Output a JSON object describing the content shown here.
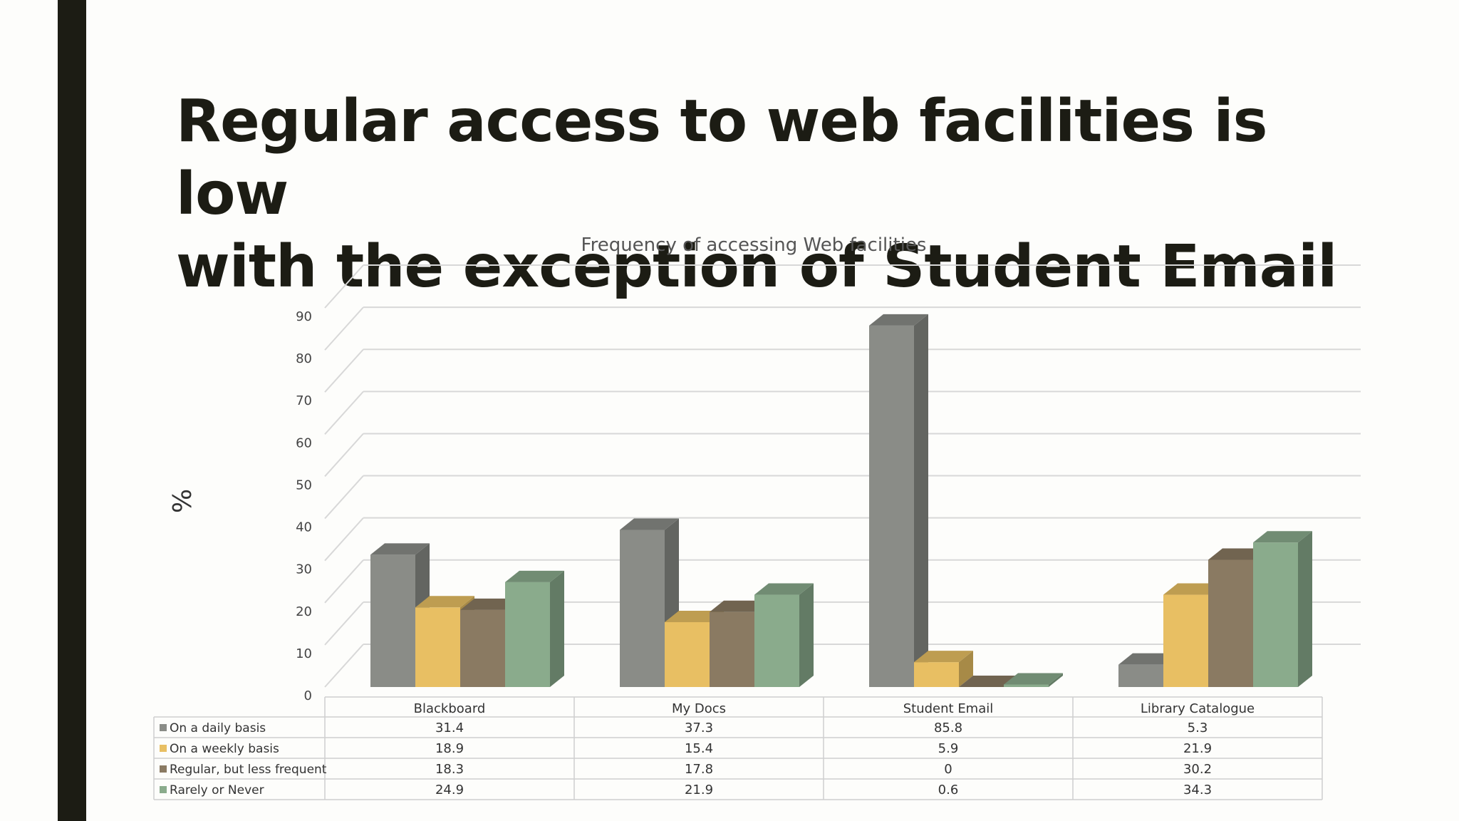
{
  "slide": {
    "title_line1": "Regular access to web facilities is low",
    "title_line2": "with the exception of Student Email",
    "accent_bar_color": "#1c1c14"
  },
  "chart_data": {
    "type": "bar",
    "title": "Frequency of accessing Web facilities",
    "ylabel": "%",
    "xlabel": "",
    "ylim": [
      0,
      90
    ],
    "yticks": [
      0,
      10,
      20,
      30,
      40,
      50,
      60,
      70,
      80,
      90
    ],
    "grid": true,
    "three_d": true,
    "legend_placement": "data-table",
    "categories": [
      "Blackboard",
      "My Docs",
      "Student Email",
      "Library Catalogue"
    ],
    "series": [
      {
        "name": "On a daily basis",
        "color": "#8a8c87",
        "values": [
          31.4,
          37.3,
          85.8,
          5.3
        ],
        "labels": [
          "31.4",
          "37.3",
          "85.8",
          "5.3"
        ]
      },
      {
        "name": "On a weekly basis",
        "color": "#e8bf63",
        "values": [
          18.9,
          15.4,
          5.9,
          21.9
        ],
        "labels": [
          "18.9",
          "15.4",
          "5.9",
          "21.9"
        ]
      },
      {
        "name": "Regular, but less frequent",
        "color": "#8a7a62",
        "values": [
          18.3,
          17.8,
          0,
          30.2
        ],
        "labels": [
          "18.3",
          "17.8",
          "0",
          "30.2"
        ]
      },
      {
        "name": "Rarely or Never",
        "color": "#8aab8c",
        "values": [
          24.9,
          21.9,
          0.6,
          34.3
        ],
        "labels": [
          "24.9",
          "21.9",
          "0.6",
          "34.3"
        ]
      }
    ]
  }
}
